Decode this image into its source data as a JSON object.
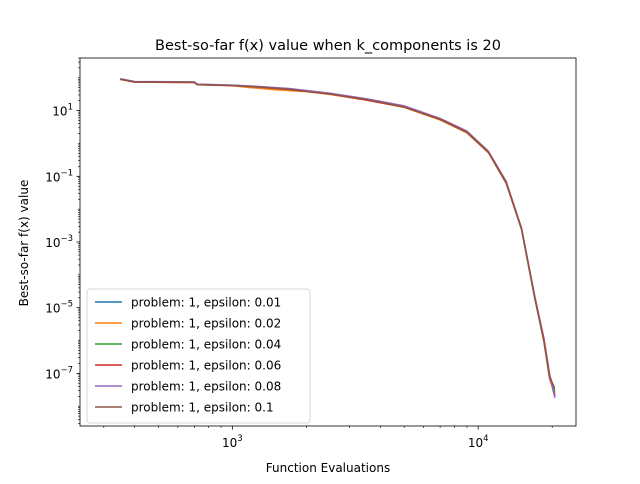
{
  "chart_data": {
    "type": "line",
    "title": "Best-so-far f(x) value when k_components is 20",
    "xlabel": "Function Evaluations",
    "ylabel": "Best-so-far f(x) value",
    "xscale": "log",
    "yscale": "log",
    "xlim": [
      240,
      25000
    ],
    "ylim": [
      2.5e-09,
      400
    ],
    "grid": false,
    "legend_position": "lower-left",
    "x_major_ticks": [
      {
        "value": 1000,
        "base": "10",
        "exp": "3"
      },
      {
        "value": 10000,
        "base": "10",
        "exp": "4"
      }
    ],
    "y_major_ticks": [
      {
        "value": 10,
        "base": "10",
        "exp": "1"
      },
      {
        "value": 0.1,
        "base": "10",
        "exp": "−1"
      },
      {
        "value": 0.001,
        "base": "10",
        "exp": "−3"
      },
      {
        "value": 1e-05,
        "base": "10",
        "exp": "−5"
      },
      {
        "value": 1e-07,
        "base": "10",
        "exp": "−7"
      }
    ],
    "series": [
      {
        "name": "problem: 1, epsilon: 0.01",
        "color": "#1f77b4",
        "x": [
          350,
          400,
          700,
          720,
          1000,
          1300,
          1700,
          2500,
          3500,
          5000,
          7000,
          9000,
          11000,
          13000,
          15000,
          17000,
          18500,
          19500,
          20500
        ],
        "y": [
          92,
          75,
          73,
          62,
          58,
          52,
          45,
          32,
          22,
          13,
          5.5,
          2.2,
          0.55,
          0.065,
          0.0025,
          2e-05,
          1e-06,
          8e-08,
          2e-08
        ]
      },
      {
        "name": "problem: 1, epsilon: 0.02",
        "color": "#ff7f0e",
        "x": [
          350,
          400,
          700,
          720,
          1000,
          1200,
          1500,
          2000,
          2500,
          3500,
          5000,
          7000,
          9000,
          11000,
          13000,
          15000,
          17000,
          18500,
          19500,
          20500
        ],
        "y": [
          90,
          74,
          72,
          61,
          57,
          50,
          43,
          38,
          31,
          21,
          12.5,
          5.2,
          2.1,
          0.52,
          0.06,
          0.0024,
          1.9e-05,
          9e-07,
          7e-08,
          2.5e-08
        ]
      },
      {
        "name": "problem: 1, epsilon: 0.04",
        "color": "#2ca02c",
        "x": [
          350,
          400,
          700,
          720,
          1000,
          1300,
          1700,
          2500,
          3500,
          5000,
          7000,
          9000,
          11000,
          13000,
          15000,
          17000,
          18500,
          19500,
          20500
        ],
        "y": [
          91,
          76,
          74,
          63,
          59,
          53,
          46,
          33,
          22,
          13,
          5.6,
          2.3,
          0.56,
          0.066,
          0.0026,
          2.1e-05,
          1.1e-06,
          9e-08,
          2.8e-08
        ]
      },
      {
        "name": "problem: 1, epsilon: 0.06",
        "color": "#d62728",
        "x": [
          350,
          400,
          700,
          720,
          1000,
          1300,
          1700,
          2500,
          3500,
          5000,
          7000,
          9000,
          11000,
          13000,
          15000,
          17000,
          18500,
          19500,
          20500
        ],
        "y": [
          89,
          74,
          72,
          62,
          58,
          52,
          44,
          32,
          21,
          12.8,
          5.4,
          2.2,
          0.54,
          0.064,
          0.0025,
          2e-05,
          1e-06,
          8e-08,
          2.2e-08
        ]
      },
      {
        "name": "problem: 1, epsilon: 0.08",
        "color": "#9467bd",
        "x": [
          350,
          400,
          700,
          720,
          1000,
          1300,
          1700,
          2500,
          3500,
          5000,
          7000,
          9000,
          11000,
          13000,
          15000,
          17000,
          18500,
          19500,
          20500
        ],
        "y": [
          93,
          77,
          75,
          64,
          60,
          54,
          47,
          34,
          23,
          14,
          5.8,
          2.4,
          0.58,
          0.07,
          0.0027,
          2.2e-05,
          1.2e-06,
          1e-07,
          1.8e-08
        ]
      },
      {
        "name": "problem: 1, epsilon: 0.1",
        "color": "#8c564b",
        "x": [
          350,
          400,
          700,
          720,
          1000,
          1300,
          1700,
          2500,
          3500,
          5000,
          7000,
          9000,
          11000,
          13000,
          15000,
          17000,
          18500,
          19500,
          20500
        ],
        "y": [
          92,
          75,
          73,
          62,
          58,
          52,
          45,
          32,
          22,
          13,
          5.5,
          2.2,
          0.55,
          0.065,
          0.0025,
          2e-05,
          1e-06,
          8e-08,
          3.5e-08
        ]
      }
    ]
  }
}
